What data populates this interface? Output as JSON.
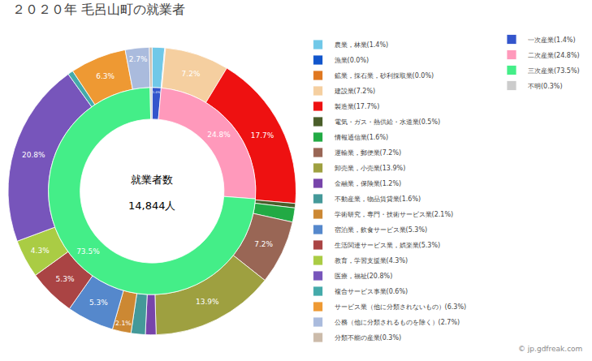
{
  "chart_data": [
    {
      "type": "pie",
      "title": "２０２０年 毛呂山町の就業者",
      "annotations": [
        {
          "text": "就業者数"
        },
        {
          "text": "14,844人"
        },
        {
          "text": "© jp.gdfreak.com"
        }
      ],
      "categories": [
        "農業，林業(1.4%)",
        "漁業(0.0%)",
        "鉱業，採石業，砂利採取業(0.0%)",
        "建設業(7.2%)",
        "製造業(17.7%)",
        "電気・ガス・熱供給・水道業(0.5%)",
        "情報通信業(1.6%)",
        "運輸業，郵便業(7.2%)",
        "卸売業，小売業(13.9%)",
        "金融業，保険業(1.2%)",
        "不動産業，物品賃貸業(1.6%)",
        "学術研究，専門・技術サービス業(2.1%)",
        "宿泊業，飲食サービス業(5.3%)",
        "生活関連サービス業，娯楽業(5.3%)",
        "教育，学習支援業(4.3%)",
        "医療，福祉(20.8%)",
        "複合サービス事業(0.6%)",
        "サービス業（他に分類されないもの）(6.3%)",
        "公務（他に分類されるものを除く）(2.7%)",
        "分類不能の産業(0.3%)"
      ],
      "values": [
        1.4,
        0.05,
        0.05,
        7.2,
        17.7,
        0.5,
        1.6,
        7.2,
        13.9,
        1.2,
        1.6,
        2.1,
        5.3,
        5.3,
        4.3,
        20.8,
        0.6,
        6.3,
        2.7,
        0.3
      ],
      "value_labels": [
        null,
        null,
        null,
        "7.2%",
        "17.7%",
        null,
        null,
        "7.2%",
        "13.9%",
        null,
        null,
        "2.1%",
        "5.3%",
        "5.3%",
        "4.3%",
        "20.8%",
        null,
        "6.3%",
        "2.7%",
        null
      ],
      "colors": [
        "#70C8E8",
        "#1155CC",
        "#E07820",
        "#F5CFA0",
        "#EE1111",
        "#4A5E2A",
        "#22AA44",
        "#996655",
        "#9EA040",
        "#7744AA",
        "#449999",
        "#CC8833",
        "#5588CC",
        "#AA4444",
        "#AACC44",
        "#7755BB",
        "#44AAAA",
        "#EE9933",
        "#AABBDD",
        "#CCBBAA"
      ],
      "data_labels": true,
      "legend": "right"
    },
    {
      "type": "pie",
      "categories": [
        "一次産業(1.4%)",
        "二次産業(24.8%)",
        "三次産業(73.5%)",
        "不明(0.3%)"
      ],
      "values": [
        1.4,
        24.8,
        73.5,
        0.3
      ],
      "value_labels": [
        "1.4%",
        "24.8%",
        "73.5%",
        null
      ],
      "colors": [
        "#3355CC",
        "#FF99BB",
        "#44EE88",
        "#CCCCCC"
      ],
      "data_labels": true,
      "legend": "right"
    }
  ]
}
